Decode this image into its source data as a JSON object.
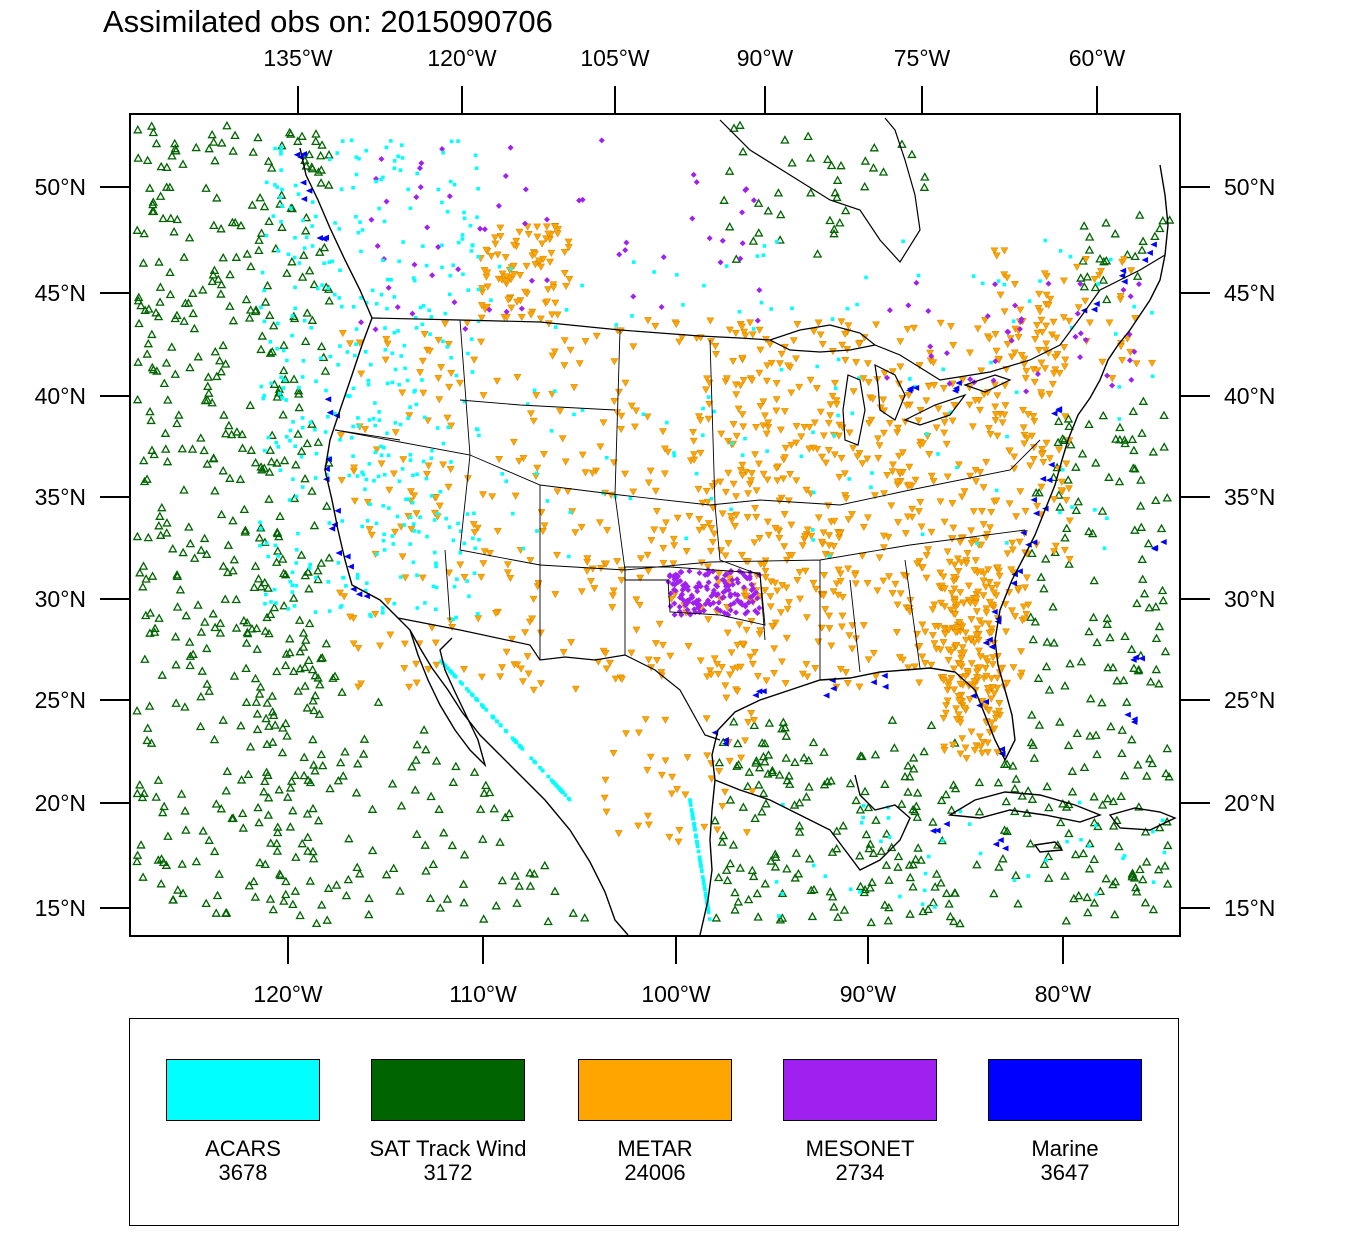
{
  "title": "Assimilated obs on: 2015090706",
  "map": {
    "top_lon_ticks": [
      "135°W",
      "120°W",
      "105°W",
      "90°W",
      "75°W",
      "60°W"
    ],
    "bottom_lon_ticks": [
      "120°W",
      "110°W",
      "100°W",
      "90°W",
      "80°W"
    ],
    "left_lat_ticks": [
      "50°N",
      "45°N",
      "40°N",
      "35°N",
      "30°N",
      "25°N",
      "20°N",
      "15°N"
    ],
    "right_lat_ticks": [
      "50°N",
      "45°N",
      "40°N",
      "35°N",
      "30°N",
      "25°N",
      "20°N",
      "15°N"
    ],
    "region": "Continental US, southern Canada, Mexico, Gulf of Mexico, Caribbean"
  },
  "legend": {
    "items": [
      {
        "name": "ACARS",
        "count": "3678",
        "color": "#00ffff",
        "marker": "dot"
      },
      {
        "name": "SAT Track Wind",
        "count": "3172",
        "color": "#006400",
        "marker": "triangle-up"
      },
      {
        "name": "METAR",
        "count": "24006",
        "color": "#ffa500",
        "marker": "triangle-down"
      },
      {
        "name": "MESONET",
        "count": "2734",
        "color": "#a020f0",
        "marker": "diamond"
      },
      {
        "name": "Marine",
        "count": "3647",
        "color": "#0000ff",
        "marker": "triangle-left"
      }
    ]
  }
}
